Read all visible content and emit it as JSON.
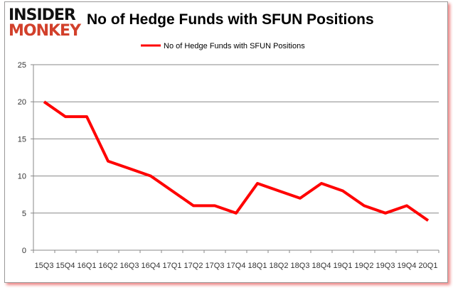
{
  "logo": {
    "line1": "INSIDER",
    "line2": "MONKEY"
  },
  "chart_data": {
    "type": "line",
    "title": "No of Hedge Funds with SFUN Positions",
    "categories": [
      "15Q3",
      "15Q4",
      "16Q1",
      "16Q2",
      "16Q3",
      "16Q4",
      "17Q1",
      "17Q2",
      "17Q3",
      "17Q4",
      "18Q1",
      "18Q2",
      "18Q3",
      "18Q4",
      "19Q1",
      "19Q2",
      "19Q3",
      "19Q4",
      "20Q1"
    ],
    "series": [
      {
        "name": "No of Hedge Funds with SFUN Positions",
        "values": [
          20,
          18,
          18,
          12,
          11,
          10,
          8,
          6,
          6,
          5,
          9,
          8,
          7,
          9,
          8,
          6,
          5,
          6,
          4
        ],
        "color": "#ff0000"
      }
    ],
    "yticks": [
      0,
      5,
      10,
      15,
      20,
      25
    ],
    "ylim": [
      0,
      25
    ],
    "grid": true,
    "legend": "top-center",
    "xlabel": "",
    "ylabel": ""
  }
}
